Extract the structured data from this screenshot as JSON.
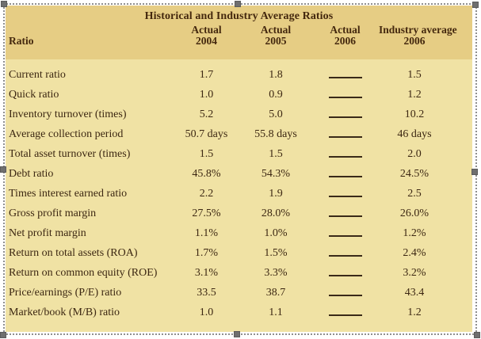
{
  "editor": {
    "selection": {
      "state": "image-selected",
      "handle_color": "#6f6f6f",
      "marquee_color": "#8f8f8f",
      "handles": [
        "top-left",
        "top-middle",
        "top-right",
        "left-middle",
        "right-middle",
        "bottom-left",
        "bottom-middle",
        "bottom-right"
      ]
    }
  },
  "table": {
    "title": "Historical and Industry Average Ratios",
    "ratio_header": "Ratio",
    "column_headers": [
      {
        "line1": "Actual",
        "line2": "2004"
      },
      {
        "line1": "Actual",
        "line2": "2005"
      },
      {
        "line1": "Actual",
        "line2": "2006"
      },
      {
        "line1": "Industry average",
        "line2": "2006"
      }
    ],
    "blank_cell_style": "underline-answer-line",
    "rows": [
      {
        "label": "Current ratio",
        "values": [
          "1.7",
          "1.8",
          null,
          "1.5"
        ]
      },
      {
        "label": "Quick ratio",
        "values": [
          "1.0",
          "0.9",
          null,
          "1.2"
        ]
      },
      {
        "label": "Inventory turnover (times)",
        "values": [
          "5.2",
          "5.0",
          null,
          "10.2"
        ]
      },
      {
        "label": "Average collection period",
        "values": [
          "50.7 days",
          "55.8 days",
          null,
          "46 days"
        ]
      },
      {
        "label": "Total asset turnover (times)",
        "values": [
          "1.5",
          "1.5",
          null,
          "2.0"
        ]
      },
      {
        "label": "Debt ratio",
        "values": [
          "45.8%",
          "54.3%",
          null,
          "24.5%"
        ]
      },
      {
        "label": "Times interest earned ratio",
        "values": [
          "2.2",
          "1.9",
          null,
          "2.5"
        ]
      },
      {
        "label": "Gross profit margin",
        "values": [
          "27.5%",
          "28.0%",
          null,
          "26.0%"
        ]
      },
      {
        "label": "Net profit margin",
        "values": [
          "1.1%",
          "1.0%",
          null,
          "1.2%"
        ]
      },
      {
        "label": "Return on total assets (ROA)",
        "values": [
          "1.7%",
          "1.5%",
          null,
          "2.4%"
        ]
      },
      {
        "label": "Return on common equity (ROE)",
        "values": [
          "3.1%",
          "3.3%",
          null,
          "3.2%"
        ]
      },
      {
        "label": "Price/earnings (P/E) ratio",
        "values": [
          "33.5",
          "38.7",
          null,
          "43.4"
        ]
      },
      {
        "label": "Market/book (M/B) ratio",
        "values": [
          "1.0",
          "1.1",
          null,
          "1.2"
        ]
      }
    ],
    "colors": {
      "header_band_bg": "#e6cd84",
      "body_bg": "#f0e2a4",
      "text": "#3c2712"
    }
  }
}
